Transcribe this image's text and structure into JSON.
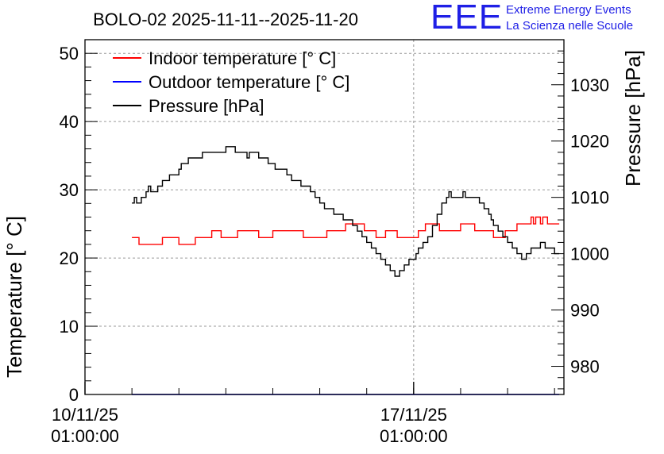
{
  "chart_data": {
    "type": "line",
    "title": "BOLO-02 2025-11-11--2025-11-20",
    "ylabel": "Temperature [° C]",
    "y2label": "Pressure [hPa]",
    "ylim": [
      0,
      52
    ],
    "y2lim": [
      975,
      1038
    ],
    "yticks": [
      0,
      10,
      20,
      30,
      40,
      50
    ],
    "y2ticks": [
      980,
      990,
      1000,
      1010,
      1020,
      1030
    ],
    "xrange_days": [
      10.0,
      20.2
    ],
    "xticks": [
      {
        "day": 10.0,
        "date": "10/11/25",
        "time": "01:00:00"
      },
      {
        "day": 17.0,
        "date": "17/11/25",
        "time": "01:00:00"
      }
    ],
    "grid": true,
    "legend_position": "top-left",
    "series": [
      {
        "name": "Indoor temperature [° C]",
        "color": "#ff0000",
        "axis": "left",
        "x": [
          11.0,
          11.1,
          11.15,
          11.6,
          11.65,
          11.95,
          12.0,
          12.3,
          12.35,
          12.65,
          12.7,
          12.85,
          12.9,
          13.2,
          13.25,
          13.65,
          13.7,
          13.95,
          14.0,
          14.6,
          14.65,
          15.1,
          15.15,
          15.5,
          15.55,
          15.9,
          15.95,
          16.15,
          16.2,
          16.35,
          16.4,
          16.6,
          16.65,
          17.05,
          17.1,
          17.2,
          17.25,
          17.5,
          17.55,
          17.95,
          18.0,
          18.25,
          18.3,
          18.65,
          18.7,
          18.9,
          18.95,
          19.15,
          19.2,
          19.45,
          19.5,
          19.55,
          19.6,
          19.7,
          19.75,
          19.85,
          19.9,
          20.1
        ],
        "y": [
          23,
          23,
          22,
          22,
          23,
          23,
          22,
          22,
          23,
          23,
          24,
          24,
          23,
          23,
          24,
          24,
          23,
          23,
          24,
          24,
          23,
          23,
          24,
          24,
          25,
          25,
          24,
          24,
          23,
          23,
          24,
          24,
          23,
          23,
          24,
          24,
          25,
          25,
          24,
          24,
          25,
          25,
          24,
          24,
          23,
          23,
          24,
          24,
          25,
          25,
          26,
          25,
          26,
          25,
          26,
          25,
          25,
          25
        ]
      },
      {
        "name": "Outdoor temperature [° C]",
        "color": "#0000ff",
        "axis": "left",
        "x": [
          11.0,
          20.1
        ],
        "y": [
          0,
          0
        ]
      },
      {
        "name": "Pressure [hPa]",
        "color": "#000000",
        "axis": "right",
        "x": [
          11.0,
          11.05,
          11.1,
          11.2,
          11.3,
          11.35,
          11.4,
          11.5,
          11.55,
          11.65,
          11.7,
          11.8,
          11.9,
          12.0,
          12.05,
          12.1,
          12.2,
          12.3,
          12.4,
          12.5,
          12.55,
          12.6,
          12.7,
          12.8,
          12.9,
          13.0,
          13.1,
          13.2,
          13.3,
          13.4,
          13.45,
          13.5,
          13.6,
          13.7,
          13.8,
          13.9,
          14.0,
          14.05,
          14.1,
          14.2,
          14.3,
          14.35,
          14.4,
          14.5,
          14.6,
          14.7,
          14.8,
          14.9,
          15.0,
          15.1,
          15.2,
          15.3,
          15.4,
          15.5,
          15.6,
          15.7,
          15.8,
          15.9,
          16.0,
          16.1,
          16.2,
          16.3,
          16.4,
          16.5,
          16.6,
          16.7,
          16.8,
          16.9,
          16.95,
          17.05,
          17.1,
          17.2,
          17.3,
          17.4,
          17.5,
          17.6,
          17.7,
          17.75,
          17.8,
          17.9,
          18.0,
          18.05,
          18.1,
          18.2,
          18.3,
          18.4,
          18.5,
          18.6,
          18.65,
          18.7,
          18.8,
          18.9,
          19.0,
          19.1,
          19.2,
          19.3,
          19.35,
          19.4,
          19.5,
          19.6,
          19.7,
          19.8,
          19.9,
          20.0,
          20.1
        ],
        "y": [
          1009,
          1010,
          1009,
          1010,
          1011,
          1012,
          1011,
          1011,
          1012,
          1013,
          1013,
          1014,
          1014,
          1015,
          1016,
          1016,
          1017,
          1017,
          1017,
          1018,
          1018,
          1018,
          1018,
          1018,
          1018,
          1019,
          1019,
          1018,
          1018,
          1018,
          1017,
          1018,
          1018,
          1017,
          1017,
          1016,
          1016,
          1015,
          1015,
          1015,
          1014,
          1014,
          1013,
          1013,
          1012,
          1012,
          1011,
          1010,
          1009,
          1008,
          1008,
          1007,
          1007,
          1006,
          1006,
          1005,
          1004,
          1003,
          1002,
          1001,
          1000,
          999,
          998,
          997,
          996,
          997,
          998,
          999,
          999,
          1000,
          1001,
          1002,
          1003,
          1005,
          1007,
          1009,
          1010,
          1011,
          1010,
          1010,
          1010,
          1011,
          1010,
          1010,
          1010,
          1009,
          1008,
          1007,
          1006,
          1005,
          1004,
          1003,
          1002,
          1001,
          1000,
          999,
          999,
          1000,
          1001,
          1001,
          1002,
          1001,
          1001,
          1000,
          1000
        ]
      }
    ]
  },
  "logo": {
    "mark": "EEE",
    "line1": "Extreme Energy Events",
    "line2": "La Scienza nelle Scuole"
  }
}
